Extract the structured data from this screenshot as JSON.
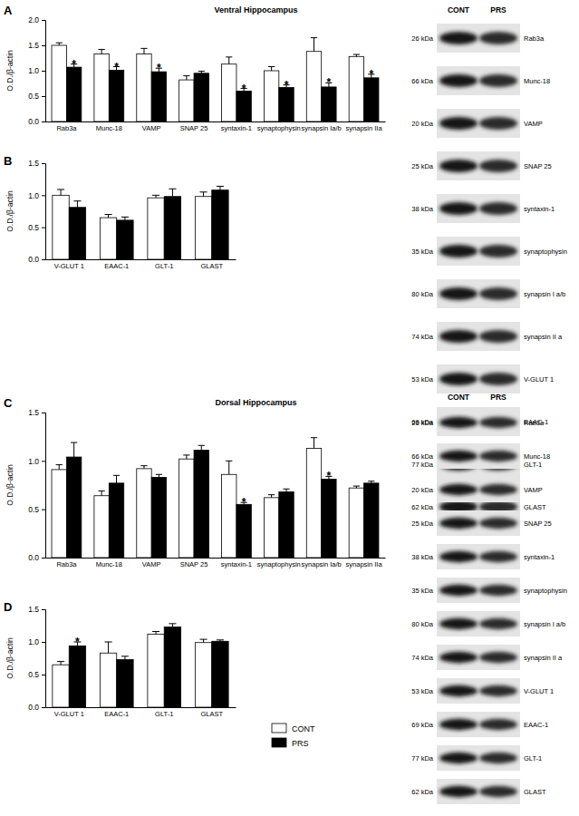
{
  "chart_data": [
    {
      "type": "bar",
      "panel": "A",
      "title": "Ventral Hippocampus",
      "y_label": "O.D./β-actin",
      "categories": [
        "Rab3a",
        "Munc-18",
        "VAMP",
        "SNAP 25",
        "syntaxin-1",
        "synaptophysin",
        "synapsin Ia/b",
        "synapsin IIa"
      ],
      "series": [
        {
          "name": "CONT",
          "color": "#ffffff",
          "values": [
            1.5,
            1.33,
            1.33,
            0.82,
            1.13,
            1.0,
            1.38,
            1.28
          ],
          "errors": [
            0.05,
            0.09,
            0.11,
            0.08,
            0.14,
            0.08,
            0.27,
            0.04
          ]
        },
        {
          "name": "PRS",
          "color": "#000000",
          "values": [
            1.07,
            1.01,
            0.98,
            0.95,
            0.6,
            0.67,
            0.68,
            0.86
          ],
          "errors": [
            0.06,
            0.07,
            0.07,
            0.04,
            0.05,
            0.05,
            0.08,
            0.07
          ]
        }
      ],
      "annotations": [
        {
          "category": "Rab3a",
          "series": "PRS",
          "text": "*"
        },
        {
          "category": "Munc-18",
          "series": "PRS",
          "text": "*"
        },
        {
          "category": "VAMP",
          "series": "PRS",
          "text": "*"
        },
        {
          "category": "syntaxin-1",
          "series": "PRS",
          "text": "*"
        },
        {
          "category": "synaptophysin",
          "series": "PRS",
          "text": "*"
        },
        {
          "category": "synapsin Ia/b",
          "series": "PRS",
          "text": "*"
        },
        {
          "category": "synapsin IIa",
          "series": "PRS",
          "text": "*"
        }
      ],
      "ylim": [
        0,
        2
      ],
      "yticks": [
        {
          "value": 0,
          "label": "0.0"
        },
        0.5,
        {
          "value": 1,
          "label": "1.0"
        },
        1.5,
        {
          "value": 2,
          "label": "2.0"
        }
      ]
    },
    {
      "type": "bar",
      "panel": "B",
      "y_label": "O.D./β-actin",
      "categories": [
        "V-GLUT 1",
        "EAAC-1",
        "GLT-1",
        "GLAST"
      ],
      "series": [
        {
          "name": "CONT",
          "color": "#ffffff",
          "values": [
            1.0,
            0.65,
            0.96,
            0.98
          ],
          "errors": [
            0.09,
            0.05,
            0.04,
            0.07
          ]
        },
        {
          "name": "PRS",
          "color": "#000000",
          "values": [
            0.81,
            0.61,
            0.98,
            1.08
          ],
          "errors": [
            0.1,
            0.05,
            0.12,
            0.06
          ]
        }
      ],
      "ylim": [
        0,
        1.5
      ],
      "yticks": [
        {
          "value": 0,
          "label": "0.0"
        },
        0.5,
        {
          "value": 1,
          "label": "1.0"
        },
        1.5
      ]
    },
    {
      "type": "bar",
      "panel": "C",
      "title": "Dorsal Hippocampus",
      "y_label": "O.D./β-actin",
      "categories": [
        "Rab3a",
        "Munc-18",
        "VAMP",
        "SNAP 25",
        "syntaxin-1",
        "synaptophysin",
        "synapsin Ia/b",
        "synapsin IIa"
      ],
      "series": [
        {
          "name": "CONT",
          "color": "#ffffff",
          "values": [
            0.91,
            0.64,
            0.92,
            1.02,
            0.86,
            0.62,
            1.13,
            0.72
          ],
          "errors": [
            0.05,
            0.05,
            0.03,
            0.04,
            0.14,
            0.03,
            0.11,
            0.02
          ]
        },
        {
          "name": "PRS",
          "color": "#000000",
          "values": [
            1.04,
            0.77,
            0.83,
            1.11,
            0.55,
            0.68,
            0.81,
            0.77
          ],
          "errors": [
            0.15,
            0.08,
            0.03,
            0.05,
            0.02,
            0.03,
            0.03,
            0.02
          ]
        }
      ],
      "annotations": [
        {
          "category": "syntaxin-1",
          "series": "PRS",
          "text": "*"
        },
        {
          "category": "synapsin Ia/b",
          "series": "PRS",
          "text": "*"
        }
      ],
      "ylim": [
        0,
        1.5
      ],
      "yticks": [
        {
          "value": 0,
          "label": "0.0"
        },
        0.5,
        {
          "value": 1,
          "label": "1.0"
        },
        1.5
      ]
    },
    {
      "type": "bar",
      "panel": "D",
      "y_label": "O.D./β-actin",
      "legend": "lower right",
      "categories": [
        "V-GLUT 1",
        "EAAC-1",
        "GLT-1",
        "GLAST"
      ],
      "series": [
        {
          "name": "CONT",
          "color": "#ffffff",
          "values": [
            0.65,
            0.83,
            1.12,
            0.99
          ],
          "errors": [
            0.05,
            0.17,
            0.04,
            0.05
          ]
        },
        {
          "name": "PRS",
          "color": "#000000",
          "values": [
            0.94,
            0.73,
            1.23,
            1.01
          ],
          "errors": [
            0.06,
            0.05,
            0.05,
            0.02
          ]
        }
      ],
      "annotations": [
        {
          "category": "V-GLUT 1",
          "series": "PRS",
          "text": "*"
        }
      ],
      "ylim": [
        0,
        1.5
      ],
      "yticks": [
        {
          "value": 0,
          "label": "0.0"
        },
        0.5,
        {
          "value": 1,
          "label": "1.0"
        },
        1.5
      ]
    }
  ],
  "blots": [
    {
      "header": [
        "CONT",
        "PRS"
      ],
      "rows": [
        {
          "kda": "26 kDa",
          "protein": "Rab3a"
        },
        {
          "kda": "66 kDa",
          "protein": "Munc-18"
        },
        {
          "kda": "20 kDa",
          "protein": "VAMP"
        },
        {
          "kda": "25 kDa",
          "protein": "SNAP 25"
        },
        {
          "kda": "38 kDa",
          "protein": "syntaxin-1"
        },
        {
          "kda": "35 kDa",
          "protein": "synaptophysin"
        },
        {
          "kda": "80 kDa",
          "protein": "synapsin I a/b"
        },
        {
          "kda": "74 kDa",
          "protein": "synapsin II a"
        },
        {
          "kda": "53 kDa",
          "protein": "V-GLUT 1"
        },
        {
          "kda": "69 kDa",
          "protein": "EAAC-1"
        },
        {
          "kda": "77 kDa",
          "protein": "GLT-1"
        },
        {
          "kda": "62 kDa",
          "protein": "GLAST"
        }
      ]
    },
    {
      "header": [
        "CONT",
        "PRS"
      ],
      "rows": [
        {
          "kda": "26 kDa",
          "protein": "Rab3a"
        },
        {
          "kda": "66 kDa",
          "protein": "Munc-18"
        },
        {
          "kda": "20 kDa",
          "protein": "VAMP"
        },
        {
          "kda": "25 kDa",
          "protein": "SNAP 25"
        },
        {
          "kda": "38 kDa",
          "protein": "syntaxin-1"
        },
        {
          "kda": "35 kDa",
          "protein": "synaptophysin"
        },
        {
          "kda": "80 kDa",
          "protein": "synapsin I a/b"
        },
        {
          "kda": "74 kDa",
          "protein": "synapsin II a"
        },
        {
          "kda": "53 kDa",
          "protein": "V-GLUT 1"
        },
        {
          "kda": "69 kDa",
          "protein": "EAAC-1"
        },
        {
          "kda": "77 kDa",
          "protein": "GLT-1"
        },
        {
          "kda": "62 kDa",
          "protein": "GLAST"
        }
      ]
    }
  ]
}
